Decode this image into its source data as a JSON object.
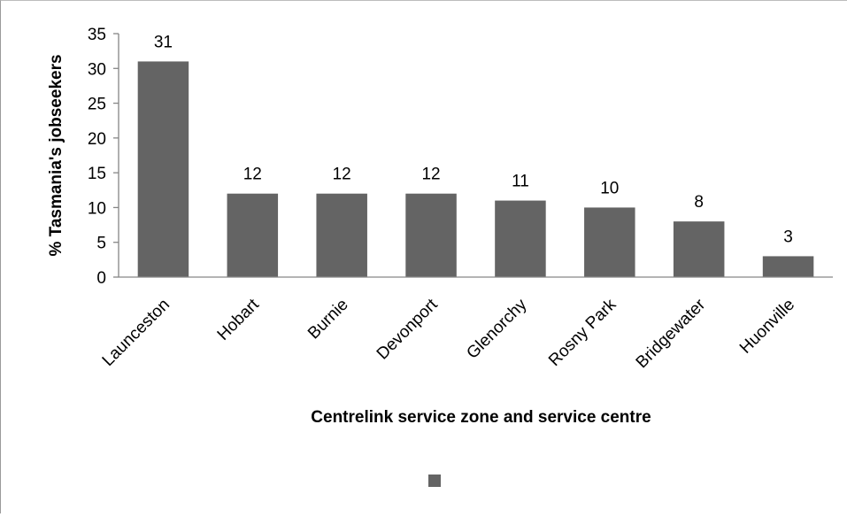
{
  "chart_data": {
    "type": "bar",
    "categories": [
      "Launceston",
      "Hobart",
      "Burnie",
      "Devonport",
      "Glenorchy",
      "Rosny Park",
      "Bridgewater",
      "Huonville"
    ],
    "series": [
      {
        "values": [
          31,
          12,
          12,
          12,
          11,
          10,
          8,
          3
        ]
      }
    ],
    "data_labels": [
      "31",
      "12",
      "12",
      "12",
      "11",
      "10",
      "8",
      "3"
    ],
    "xlabel": "Centrelink service zone and service centre",
    "ylabel": "% Tasmania's jobseekers",
    "ylim": [
      0,
      35
    ],
    "yticks": [
      0,
      5,
      10,
      15,
      20,
      25,
      30,
      35
    ],
    "ytick_labels": [
      "0",
      "5",
      "10",
      "15",
      "20",
      "25",
      "30",
      "35"
    ],
    "grid": false,
    "legend": {
      "position": "bottom",
      "marker_only": true
    },
    "bar_color": "#646464",
    "axis_color": "#868686"
  }
}
